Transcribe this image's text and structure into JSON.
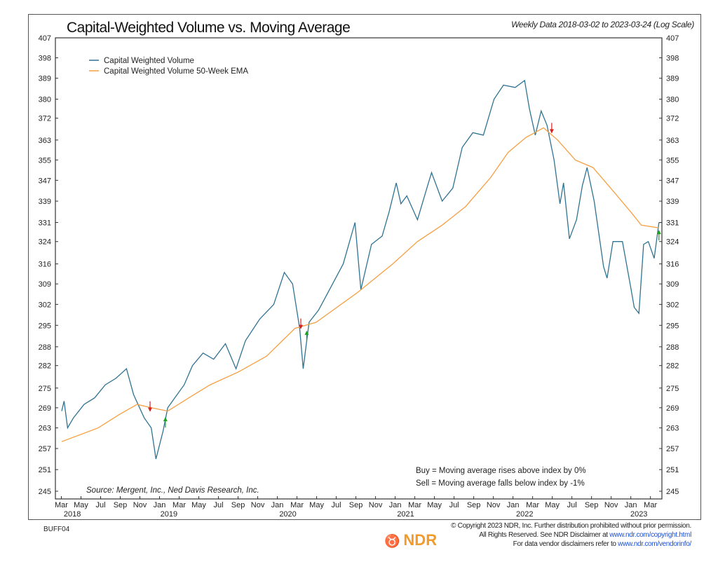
{
  "chart_data": {
    "type": "line",
    "title": "Capital-Weighted Volume vs. Moving Average",
    "subtitle": "Weekly Data 2018-03-02 to 2023-03-24 (Log Scale)",
    "yscale": "log",
    "ylim": [
      245,
      407
    ],
    "xlim": [
      2018.12,
      2023.28
    ],
    "yticks": [
      407,
      398,
      389,
      380,
      372,
      363,
      355,
      347,
      339,
      331,
      324,
      316,
      309,
      302,
      295,
      288,
      282,
      275,
      269,
      263,
      257,
      251,
      245
    ],
    "xtick_months": [
      "Mar",
      "May",
      "Jul",
      "Sep",
      "Nov",
      "Jan",
      "Mar",
      "May",
      "Jul",
      "Sep",
      "Nov",
      "Jan",
      "Mar",
      "May",
      "Jul",
      "Sep",
      "Nov",
      "Jan",
      "Mar",
      "May",
      "Jul",
      "Sep",
      "Nov",
      "Jan",
      "Mar",
      "May",
      "Jul",
      "Sep",
      "Nov",
      "Jan",
      "Mar"
    ],
    "xtick_start": 2018.167,
    "xtick_step": 0.1667,
    "year_labels": [
      {
        "label": "2018",
        "x": 2018.26
      },
      {
        "label": "2019",
        "x": 2019.08
      },
      {
        "label": "2020",
        "x": 2020.09
      },
      {
        "label": "2021",
        "x": 2021.09
      },
      {
        "label": "2022",
        "x": 2022.1
      },
      {
        "label": "2023",
        "x": 2023.07
      }
    ],
    "legend": [
      "Capital Weighted Volume",
      "Capital Weighted Volume 50-Week EMA"
    ],
    "legend_position": "top-left",
    "series": [
      {
        "name": "Capital Weighted Volume",
        "color": "#2f7391",
        "points": [
          [
            2018.17,
            268
          ],
          [
            2018.19,
            271
          ],
          [
            2018.22,
            263
          ],
          [
            2018.27,
            266
          ],
          [
            2018.36,
            270
          ],
          [
            2018.45,
            272
          ],
          [
            2018.54,
            276
          ],
          [
            2018.63,
            278
          ],
          [
            2018.72,
            281
          ],
          [
            2018.78,
            273
          ],
          [
            2018.87,
            266
          ],
          [
            2018.93,
            263
          ],
          [
            2018.97,
            254
          ],
          [
            2019.03,
            262
          ],
          [
            2019.07,
            269
          ],
          [
            2019.13,
            272
          ],
          [
            2019.21,
            276
          ],
          [
            2019.28,
            282
          ],
          [
            2019.37,
            286
          ],
          [
            2019.46,
            284
          ],
          [
            2019.56,
            289
          ],
          [
            2019.65,
            281
          ],
          [
            2019.73,
            290
          ],
          [
            2019.85,
            297
          ],
          [
            2019.97,
            302
          ],
          [
            2020.06,
            313
          ],
          [
            2020.13,
            309
          ],
          [
            2020.19,
            294
          ],
          [
            2020.22,
            281
          ],
          [
            2020.27,
            296
          ],
          [
            2020.35,
            300
          ],
          [
            2020.43,
            306
          ],
          [
            2020.56,
            316
          ],
          [
            2020.66,
            331
          ],
          [
            2020.71,
            307
          ],
          [
            2020.8,
            323
          ],
          [
            2020.89,
            326
          ],
          [
            2020.95,
            335
          ],
          [
            2021.01,
            346
          ],
          [
            2021.05,
            338
          ],
          [
            2021.1,
            341
          ],
          [
            2021.19,
            332
          ],
          [
            2021.27,
            344
          ],
          [
            2021.31,
            350
          ],
          [
            2021.4,
            339
          ],
          [
            2021.49,
            344
          ],
          [
            2021.57,
            360
          ],
          [
            2021.66,
            366
          ],
          [
            2021.75,
            365
          ],
          [
            2021.84,
            380
          ],
          [
            2021.92,
            386
          ],
          [
            2022.02,
            385
          ],
          [
            2022.1,
            388
          ],
          [
            2022.14,
            376
          ],
          [
            2022.19,
            365
          ],
          [
            2022.24,
            375
          ],
          [
            2022.29,
            369
          ],
          [
            2022.35,
            355
          ],
          [
            2022.4,
            338
          ],
          [
            2022.43,
            346
          ],
          [
            2022.48,
            325
          ],
          [
            2022.54,
            332
          ],
          [
            2022.59,
            345
          ],
          [
            2022.63,
            352
          ],
          [
            2022.69,
            339
          ],
          [
            2022.77,
            315
          ],
          [
            2022.8,
            311
          ],
          [
            2022.85,
            324
          ],
          [
            2022.93,
            324
          ],
          [
            2023.0,
            308
          ],
          [
            2023.03,
            301
          ],
          [
            2023.07,
            299
          ],
          [
            2023.11,
            323
          ],
          [
            2023.15,
            324
          ],
          [
            2023.2,
            318
          ],
          [
            2023.24,
            331
          ]
        ]
      },
      {
        "name": "Capital Weighted Volume 50-Week EMA",
        "color": "#f5a043",
        "points": [
          [
            2018.17,
            259
          ],
          [
            2018.48,
            263
          ],
          [
            2018.66,
            267
          ],
          [
            2018.81,
            270
          ],
          [
            2018.93,
            269
          ],
          [
            2019.07,
            268
          ],
          [
            2019.25,
            272
          ],
          [
            2019.43,
            276
          ],
          [
            2019.67,
            280
          ],
          [
            2019.91,
            285
          ],
          [
            2020.15,
            294
          ],
          [
            2020.33,
            296
          ],
          [
            2020.68,
            306
          ],
          [
            2020.98,
            316
          ],
          [
            2021.19,
            324
          ],
          [
            2021.4,
            330
          ],
          [
            2021.6,
            337
          ],
          [
            2021.81,
            348
          ],
          [
            2021.96,
            358
          ],
          [
            2022.11,
            364
          ],
          [
            2022.26,
            368
          ],
          [
            2022.38,
            363
          ],
          [
            2022.53,
            355
          ],
          [
            2022.68,
            352
          ],
          [
            2022.83,
            344
          ],
          [
            2023.0,
            335
          ],
          [
            2023.09,
            330
          ],
          [
            2023.24,
            329
          ]
        ]
      }
    ],
    "signals": [
      {
        "type": "sell",
        "x": 2018.92,
        "y": 268
      },
      {
        "type": "buy",
        "x": 2019.05,
        "y": 266
      },
      {
        "type": "sell",
        "x": 2020.2,
        "y": 294
      },
      {
        "type": "buy",
        "x": 2020.25,
        "y": 293
      },
      {
        "type": "sell",
        "x": 2022.33,
        "y": 366
      },
      {
        "type": "buy",
        "x": 2023.24,
        "y": 328
      }
    ],
    "annotations": {
      "buy_rule": "Buy = Moving average rises above index by 0%",
      "sell_rule": "Sell = Moving average falls below index by -1%",
      "source": "Source:   Mergent, Inc., Ned Davis Research, Inc."
    },
    "colors": {
      "buy": "#1aa31a",
      "sell": "#d62020"
    }
  },
  "footer": {
    "code": "BUFF04",
    "logo": "NDR",
    "copyright_line1": "© Copyright 2023 NDR, Inc. Further distribution prohibited without prior permission.",
    "copyright_line2": "All Rights Reserved. See NDR Disclaimer at ",
    "link1": "www.ndr.com/copyright.html",
    "copyright_line3": "For data vendor disclaimers refer to ",
    "link2": "www.ndr.com/vendorinfo/"
  }
}
